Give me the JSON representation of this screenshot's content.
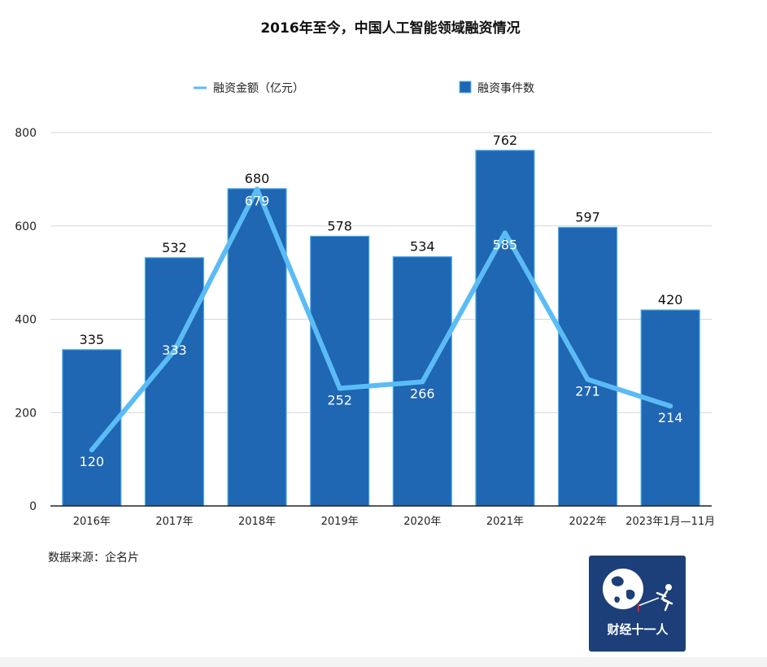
{
  "chart_data": {
    "type": "bar",
    "title": "2016年至今，中国人工智能领域融资情况",
    "categories": [
      "2016年",
      "2017年",
      "2018年",
      "2019年",
      "2020年",
      "2021年",
      "2022年",
      "2023年1月—11月"
    ],
    "series": [
      {
        "name": "融资事件数",
        "type": "bar",
        "color": "#1f66b3",
        "values": [
          335,
          532,
          680,
          578,
          534,
          762,
          597,
          420
        ]
      },
      {
        "name": "融资金额（亿元）",
        "type": "line",
        "color": "#5bbcf5",
        "values": [
          120,
          333,
          679,
          252,
          266,
          585,
          271,
          214
        ]
      }
    ],
    "ylim": [
      0,
      800
    ],
    "yticks": [
      0,
      200,
      400,
      600,
      800
    ],
    "grid": true,
    "legend_position": "top-center",
    "xlabel": "",
    "ylabel": ""
  },
  "source": "数据来源：企名片",
  "logo": {
    "text": "财经十一人",
    "bg_color": "#1c3f7a"
  }
}
